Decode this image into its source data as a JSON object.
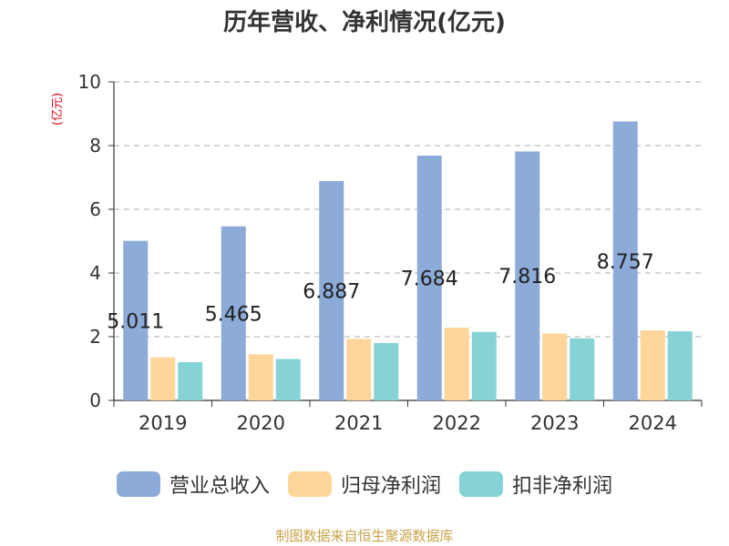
{
  "title": "历年营收、净利情况(亿元)",
  "y_unit": "(亿元)",
  "footer": "制图数据来自恒生聚源数据库",
  "colors": {
    "revenue": "#8dabd9",
    "parent_net_profit": "#ffd699",
    "non_recurring_net_profit": "#86d3d6",
    "revenue_label": "#222222",
    "unit_label": "#e60012",
    "footer": "#c8a348"
  },
  "legend": [
    {
      "label": "营业总收入",
      "color": "#8dabd9"
    },
    {
      "label": "归母净利润",
      "color": "#ffd699"
    },
    {
      "label": "扣非净利润",
      "color": "#86d3d6"
    }
  ],
  "chart_data": {
    "type": "bar",
    "title": "历年营收、净利情况(亿元)",
    "ylabel": "(亿元)",
    "categories": [
      "2019",
      "2020",
      "2021",
      "2022",
      "2023",
      "2024"
    ],
    "ylim": [
      0,
      10
    ],
    "yticks": [
      0,
      2,
      4,
      6,
      8,
      10
    ],
    "grid": true,
    "legend_position": "bottom",
    "series": [
      {
        "name": "营业总收入",
        "values": [
          5.011,
          5.465,
          6.887,
          7.684,
          7.816,
          8.757
        ],
        "labels": [
          "5.011",
          "5.465",
          "6.887",
          "7.684",
          "7.816",
          "8.757"
        ]
      },
      {
        "name": "归母净利润",
        "values": [
          1.35,
          1.45,
          1.93,
          2.28,
          2.1,
          2.2
        ]
      },
      {
        "name": "扣非净利润",
        "values": [
          1.2,
          1.3,
          1.8,
          2.15,
          1.95,
          2.17
        ]
      }
    ]
  }
}
